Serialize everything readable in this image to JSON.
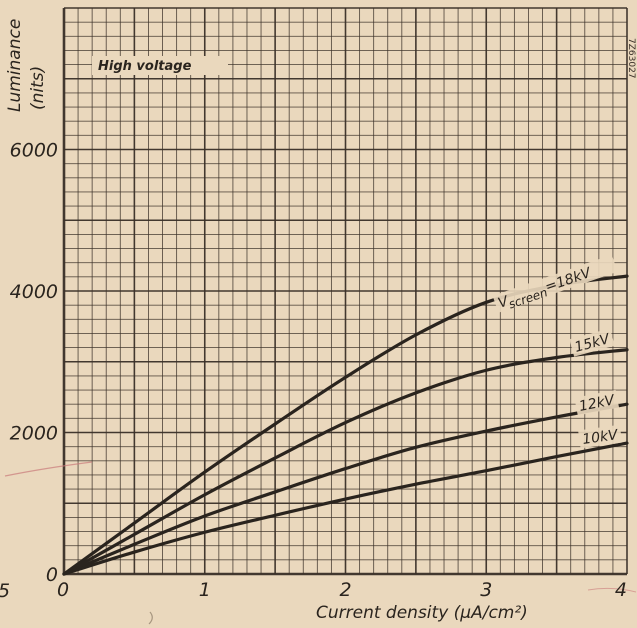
{
  "chart_data": {
    "type": "line",
    "title": "",
    "annotation": "High voltage",
    "figure_code": "7Z63027",
    "xlabel": "Current density (µA/cm²)",
    "ylabel": "Luminance",
    "ylabel_unit": "(nits)",
    "xlim": [
      0,
      4
    ],
    "ylim": [
      0,
      8000
    ],
    "x_ticks": [
      0,
      1,
      2,
      3,
      4
    ],
    "x_tick_labels": [
      "0",
      "1",
      "2",
      "3",
      "4"
    ],
    "y_ticks": [
      0,
      2000,
      4000,
      6000
    ],
    "y_tick_labels": [
      "0",
      "2000",
      "4000",
      "6000"
    ],
    "stray_tick_label": "5",
    "grid": true,
    "grid_minor": {
      "x": 0.1,
      "y": 200
    },
    "grid_major": {
      "x": 0.5,
      "y": 1000
    },
    "series": [
      {
        "name": "Vscreen=18kV",
        "label_main": "V",
        "label_sub": "screen",
        "label_tail": "=18kV",
        "x": [
          0,
          0.5,
          1,
          1.5,
          2,
          2.5,
          3,
          3.5,
          4
        ],
        "y": [
          0,
          720,
          1440,
          2120,
          2780,
          3380,
          3840,
          4080,
          4210
        ]
      },
      {
        "name": "15kV",
        "label_main": "15kV",
        "x": [
          0,
          0.5,
          1,
          1.5,
          2,
          2.5,
          3,
          3.5,
          4
        ],
        "y": [
          0,
          560,
          1120,
          1640,
          2140,
          2560,
          2880,
          3060,
          3170
        ]
      },
      {
        "name": "12kV",
        "label_main": "12kV",
        "x": [
          0,
          0.5,
          1,
          1.5,
          2,
          2.5,
          3,
          3.5,
          4
        ],
        "y": [
          0,
          420,
          820,
          1160,
          1490,
          1790,
          2020,
          2220,
          2400
        ]
      },
      {
        "name": "10kV",
        "label_main": "10kV",
        "x": [
          0,
          0.5,
          1,
          1.5,
          2,
          2.5,
          3,
          3.5,
          4
        ],
        "y": [
          0,
          310,
          590,
          830,
          1060,
          1270,
          1460,
          1660,
          1850
        ]
      }
    ],
    "colors": {
      "background": "#ead8bd",
      "grid": "#3a3028",
      "curve": "#2a241e",
      "text": "#2a241e",
      "stray_mark": "#c97a7a"
    }
  }
}
